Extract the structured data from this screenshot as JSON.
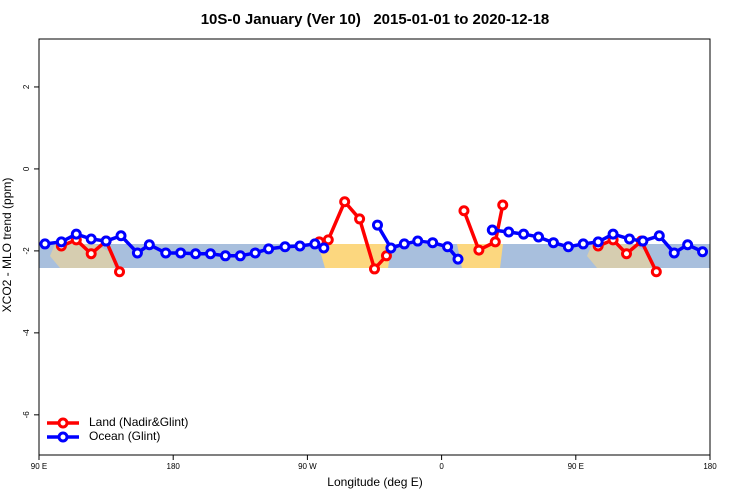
{
  "chart_data": {
    "type": "line",
    "title": "10S-0 January (Ver 10)   2015-01-01 to 2020-12-18",
    "x_label": "Longitude (deg E)",
    "y_label": "XCO2 - MLO trend (ppm)",
    "xlim": [
      90,
      540
    ],
    "ylim": [
      -6.98,
      3.17
    ],
    "xticks": [
      {
        "value": 90,
        "label": "90 E"
      },
      {
        "value": 180,
        "label": "180"
      },
      {
        "value": 270,
        "label": "90 W"
      },
      {
        "value": 360,
        "label": "0"
      },
      {
        "value": 450,
        "label": "90 E"
      },
      {
        "value": 540,
        "label": "180"
      }
    ],
    "yticks": [
      2,
      0,
      -2,
      -4,
      -6
    ],
    "legend": "bottom-left",
    "series": [
      {
        "name": "Land (Nadir&Glint)",
        "color": "#ff0000",
        "x": [
          105,
          115,
          125,
          135,
          144,
          200,
          278,
          284,
          295,
          305,
          315,
          323,
          350,
          375,
          385,
          396,
          401,
          430,
          465,
          475,
          484,
          494,
          504
        ],
        "values": [
          -1.88,
          -1.73,
          -2.07,
          -1.76,
          -2.51,
          null,
          -1.78,
          -1.73,
          -0.8,
          -1.22,
          -2.44,
          -2.12,
          null,
          -1.02,
          -1.98,
          -1.78,
          -0.88,
          null,
          -1.88,
          -1.73,
          -2.07,
          -1.76,
          -2.51
        ]
      },
      {
        "name": "Ocean (Glint)",
        "color": "#0000ff",
        "x": [
          94,
          105,
          115,
          125,
          135,
          145,
          156,
          164,
          175,
          185,
          195,
          205,
          215,
          225,
          235,
          244,
          255,
          265,
          275,
          281,
          300,
          317,
          326,
          335,
          344,
          354,
          364,
          371,
          383,
          394,
          405,
          415,
          425,
          435,
          445,
          455,
          465,
          475,
          486,
          495,
          506,
          516,
          525,
          535
        ],
        "values": [
          -1.83,
          -1.78,
          -1.59,
          -1.71,
          -1.76,
          -1.63,
          -2.05,
          -1.85,
          -2.05,
          -2.05,
          -2.07,
          -2.07,
          -2.12,
          -2.12,
          -2.05,
          -1.95,
          -1.9,
          -1.88,
          -1.83,
          -1.93,
          null,
          -1.37,
          -1.93,
          -1.83,
          -1.76,
          -1.8,
          -1.9,
          -2.2,
          null,
          -1.49,
          -1.54,
          -1.59,
          -1.66,
          -1.8,
          -1.9,
          -1.83,
          -1.78,
          -1.59,
          -1.71,
          -1.76,
          -1.63,
          -2.05,
          -1.85,
          -2.02
        ]
      }
    ]
  }
}
